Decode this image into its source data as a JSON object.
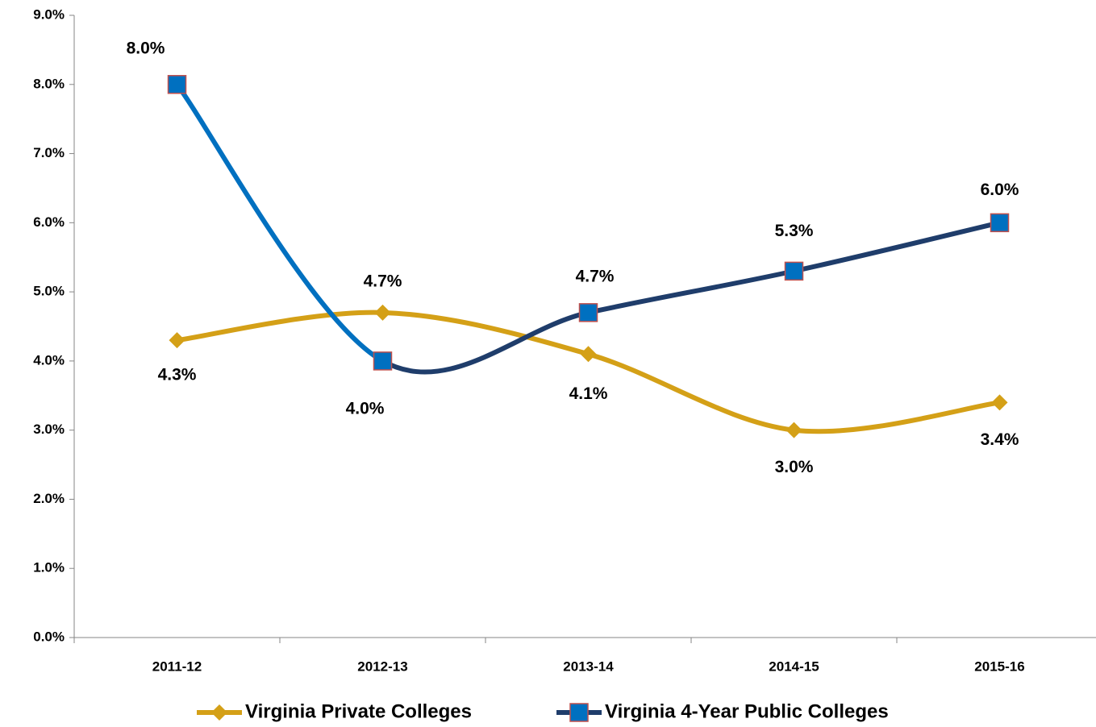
{
  "chart_data": {
    "type": "line",
    "categories": [
      "2011-12",
      "2012-13",
      "2013-14",
      "2014-15",
      "2015-16"
    ],
    "series": [
      {
        "name": "Virginia Private Colleges",
        "color": "#d4a017",
        "marker": "diamond",
        "values": [
          4.3,
          4.7,
          4.1,
          3.0,
          3.4
        ],
        "value_labels": [
          "4.3%",
          "4.7%",
          "4.1%",
          "3.0%",
          "3.4%"
        ]
      },
      {
        "name": "Virginia 4-Year Public Colleges",
        "color": "#1f3d6b",
        "marker": "square",
        "marker_color": "#0070c0",
        "marker_edge": "#c0504d",
        "segment_colors": [
          "#0070c0",
          "#1f3d6b",
          "#1f3d6b",
          "#1f3d6b"
        ],
        "values": [
          8.0,
          4.0,
          4.7,
          5.3,
          6.0
        ],
        "value_labels": [
          "8.0%",
          "4.0%",
          "4.7%",
          "5.3%",
          "6.0%"
        ]
      }
    ],
    "ylim": [
      0,
      9
    ],
    "yticks": [
      {
        "value": 0,
        "label": "0.0%"
      },
      {
        "value": 1,
        "label": "1.0%"
      },
      {
        "value": 2,
        "label": "2.0%"
      },
      {
        "value": 3,
        "label": "3.0%"
      },
      {
        "value": 4,
        "label": "4.0%"
      },
      {
        "value": 5,
        "label": "5.0%"
      },
      {
        "value": 6,
        "label": "6.0%"
      },
      {
        "value": 7,
        "label": "7.0%"
      },
      {
        "value": 8,
        "label": "8.0%"
      },
      {
        "value": 9,
        "label": "9.0%"
      }
    ],
    "smooth": true,
    "grid": false,
    "legend": "bottom"
  }
}
